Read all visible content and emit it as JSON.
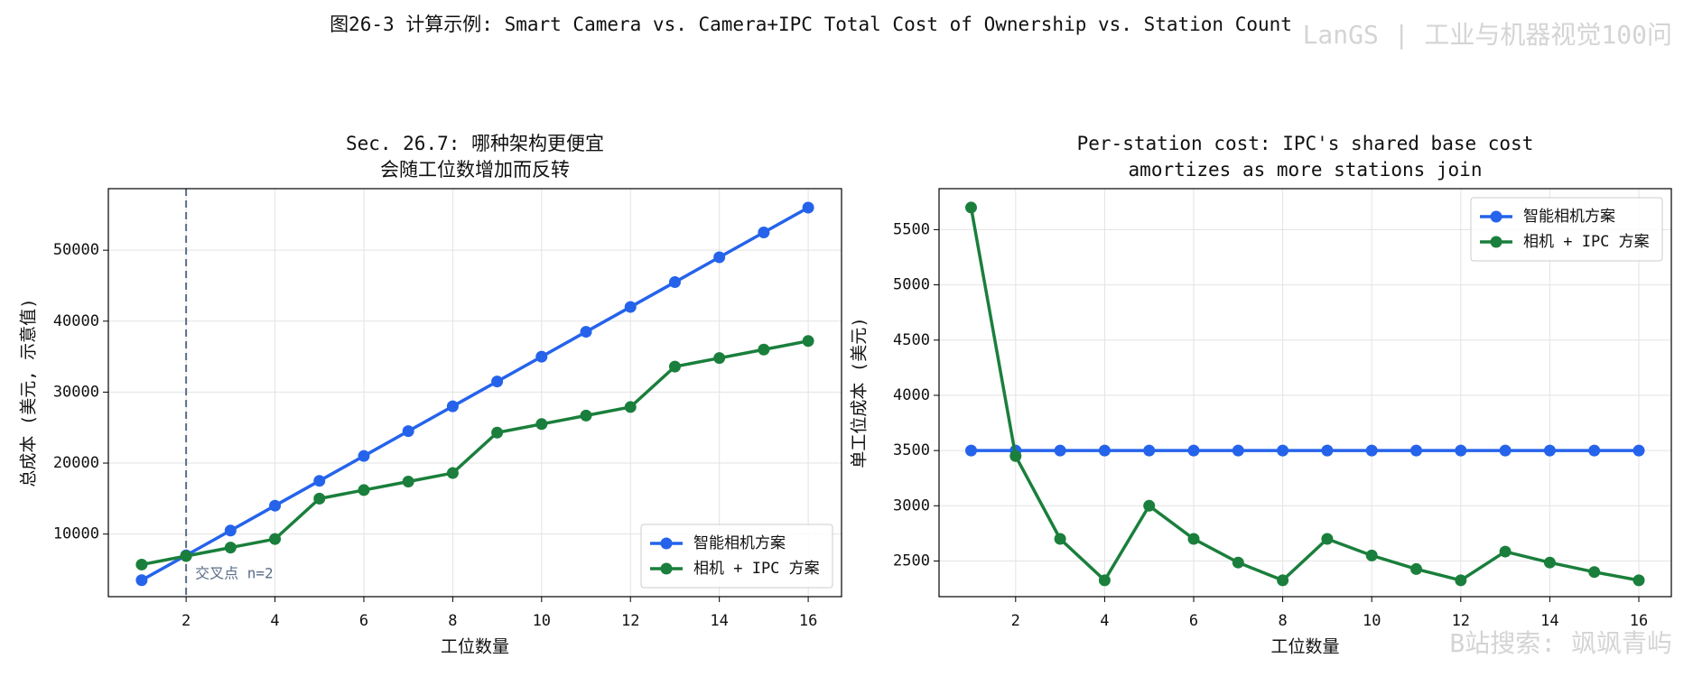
{
  "suptitle": "图26-3  计算示例: Smart Camera vs. Camera+IPC Total Cost of Ownership vs. Station Count",
  "watermarks": [
    "LanGS | 工业与机器视觉100问",
    "B站搜索: 飒飒青屿"
  ],
  "chart_data": [
    {
      "type": "line",
      "title": [
        "Sec. 26.7: 哪种架构更便宜",
        "会随工位数增加而反转"
      ],
      "xlabel": "工位数量",
      "ylabel": "总成本 (美元, 示意值)",
      "x": [
        1,
        2,
        3,
        4,
        5,
        6,
        7,
        8,
        9,
        10,
        11,
        12,
        13,
        14,
        15,
        16
      ],
      "series": [
        {
          "name": "智能相机方案",
          "color": "#2563eb",
          "values": [
            3500,
            7000,
            10500,
            14000,
            17500,
            21000,
            24500,
            28000,
            31500,
            35000,
            38500,
            42000,
            45500,
            49000,
            52500,
            56000
          ]
        },
        {
          "name": "相机 + IPC 方案",
          "color": "#1a7f3c",
          "values": [
            5700,
            6900,
            8100,
            9300,
            15000,
            16200,
            17400,
            18600,
            24300,
            25500,
            26700,
            27900,
            33600,
            34800,
            36000,
            37200
          ]
        }
      ],
      "xlim": [
        0.25,
        16.75
      ],
      "ylim": [
        1180,
        58670
      ],
      "xticks": [
        2,
        4,
        6,
        8,
        10,
        12,
        14,
        16
      ],
      "yticks": [
        10000,
        20000,
        30000,
        40000,
        50000
      ],
      "grid": true,
      "legend": "lower right",
      "vline": {
        "x": 2,
        "color": "#5a6e88",
        "label": "交叉点 n=2"
      }
    },
    {
      "type": "line",
      "title": [
        "Per-station cost: IPC's shared base cost",
        "amortizes as more stations join"
      ],
      "xlabel": "工位数量",
      "ylabel": "单工位成本 (美元)",
      "x": [
        1,
        2,
        3,
        4,
        5,
        6,
        7,
        8,
        9,
        10,
        11,
        12,
        13,
        14,
        15,
        16
      ],
      "series": [
        {
          "name": "智能相机方案",
          "color": "#2563eb",
          "values": [
            3500,
            3500,
            3500,
            3500,
            3500,
            3500,
            3500,
            3500,
            3500,
            3500,
            3500,
            3500,
            3500,
            3500,
            3500,
            3500
          ]
        },
        {
          "name": "相机 + IPC 方案",
          "color": "#1a7f3c",
          "values": [
            5700,
            3450,
            2700,
            2325,
            3000,
            2700,
            2486,
            2325,
            2700,
            2550,
            2427,
            2325,
            2585,
            2486,
            2400,
            2325
          ]
        }
      ],
      "xlim": [
        0.28,
        16.73
      ],
      "ylim": [
        2177,
        5871
      ],
      "xticks": [
        2,
        4,
        6,
        8,
        10,
        12,
        14,
        16
      ],
      "yticks": [
        2500,
        3000,
        3500,
        4000,
        4500,
        5000,
        5500
      ],
      "grid": true,
      "legend": "upper right"
    }
  ]
}
